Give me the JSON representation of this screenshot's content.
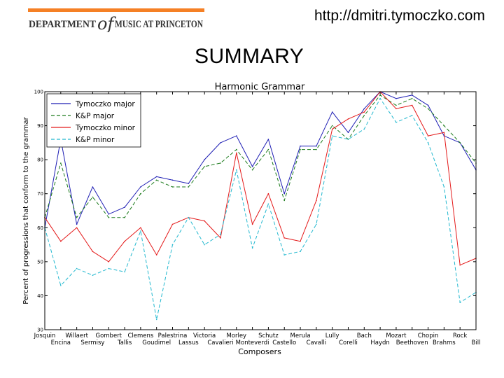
{
  "header": {
    "logo_text_left": "DEPARTMENT",
    "logo_text_script": "of",
    "logo_text_right": "MUSIC AT PRINCETON",
    "url": "http://dmitri.tymoczko.com",
    "heading": "SUMMARY"
  },
  "colors": {
    "logo_bar": "#f58025",
    "logo_text": "#333333",
    "tymoczko_major": "#1f1fb4",
    "kp_major": "#1a7a1a",
    "tymoczko_minor": "#e41a1a",
    "kp_minor": "#22b8cf"
  },
  "chart_data": {
    "type": "line",
    "title": "Harmonic Grammar",
    "xlabel": "Composers",
    "ylabel": "Percent of progressions that conform to the grammar",
    "ylim": [
      30,
      100
    ],
    "yticks": [
      "30",
      "40",
      "50",
      "60",
      "70",
      "80",
      "90",
      "100"
    ],
    "categories": [
      "Josquin",
      "Encina",
      "Willaert",
      "Sermisy",
      "Gombert",
      "Tallis",
      "Clemens",
      "Goudimel",
      "Palestrina",
      "Lassus",
      "Victoria",
      "Cavalieri",
      "Morley",
      "Monteverdi",
      "Schutz",
      "Castello",
      "Merula",
      "Cavalli",
      "Lully",
      "Corelli",
      "Bach",
      "Haydn",
      "Mozart",
      "Beethoven",
      "Chopin",
      "Brahms",
      "Rock",
      "Bill"
    ],
    "legend_position": "top-left",
    "grid": false,
    "series": [
      {
        "name": "Tymoczko major",
        "style": "solid",
        "values": [
          60,
          86,
          61,
          72,
          64,
          66,
          72,
          75,
          74,
          73,
          80,
          85,
          87,
          78,
          86,
          70,
          84,
          84,
          94,
          88,
          95,
          100,
          98,
          99,
          96,
          87,
          85,
          77
        ]
      },
      {
        "name": "K&P major",
        "style": "dashed",
        "values": [
          63,
          79,
          63,
          69,
          63,
          63,
          70,
          74,
          72,
          72,
          78,
          79,
          83,
          77,
          83,
          68,
          83,
          83,
          90,
          86,
          93,
          99,
          96,
          98,
          95,
          90,
          85,
          79
        ]
      },
      {
        "name": "Tymoczko minor",
        "style": "solid",
        "values": [
          63,
          56,
          60,
          53,
          50,
          56,
          60,
          52,
          61,
          63,
          62,
          57,
          82,
          61,
          70,
          57,
          56,
          68,
          89,
          92,
          94,
          100,
          95,
          96,
          87,
          88,
          49,
          51
        ]
      },
      {
        "name": "K&P minor",
        "style": "dashed",
        "values": [
          60,
          43,
          48,
          46,
          48,
          47,
          59,
          33,
          55,
          63,
          55,
          58,
          77,
          54,
          67,
          52,
          53,
          61,
          87,
          86,
          89,
          98,
          91,
          93,
          85,
          72,
          38,
          41
        ]
      }
    ]
  }
}
